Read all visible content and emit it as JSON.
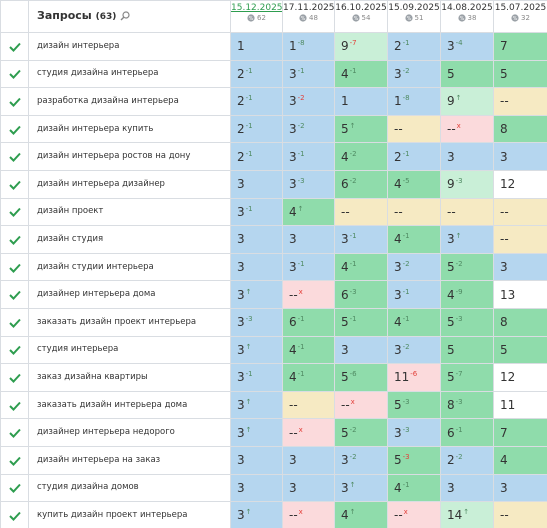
{
  "header": {
    "title": "Запросы",
    "count": "(63)",
    "dates": [
      {
        "date": "15.12.2025",
        "count": "62",
        "current": true
      },
      {
        "date": "17.11.2025",
        "count": "48"
      },
      {
        "date": "16.10.2025",
        "count": "54"
      },
      {
        "date": "15.09.2025",
        "count": "51"
      },
      {
        "date": "14.08.2025",
        "count": "38"
      },
      {
        "date": "15.07.2025",
        "count": "32"
      }
    ]
  },
  "palette": {
    "b": "#b5d6ef",
    "g": "#8fdcab",
    "l": "#c9efd7",
    "y": "#f6eac3",
    "p": "#fbdadc",
    "w": "#ffffff",
    "n": "#4f8a62",
    "r": "#e2403a"
  },
  "rows": [
    {
      "query": "дизайн интерьера",
      "cells": [
        {
          "v": "1",
          "c": "b"
        },
        {
          "v": "1",
          "d": "-8",
          "c": "b"
        },
        {
          "v": "9",
          "d": "-7",
          "c": "l",
          "dc": "r"
        },
        {
          "v": "2",
          "d": "-1",
          "c": "b"
        },
        {
          "v": "3",
          "d": "-4",
          "c": "b"
        },
        {
          "v": "7",
          "c": "g"
        }
      ]
    },
    {
      "query": "студия дизайна интерьера",
      "cells": [
        {
          "v": "2",
          "d": "-1",
          "c": "b"
        },
        {
          "v": "3",
          "d": "-1",
          "c": "b"
        },
        {
          "v": "4",
          "d": "-1",
          "c": "g"
        },
        {
          "v": "3",
          "d": "-2",
          "c": "b"
        },
        {
          "v": "5",
          "c": "g"
        },
        {
          "v": "5",
          "c": "g"
        }
      ]
    },
    {
      "query": "разработка дизайна интерьера",
      "cells": [
        {
          "v": "2",
          "d": "-1",
          "c": "b"
        },
        {
          "v": "3",
          "d": "-2",
          "c": "b",
          "dc": "r"
        },
        {
          "v": "1",
          "c": "b"
        },
        {
          "v": "1",
          "d": "-8",
          "c": "b"
        },
        {
          "v": "9",
          "d": "↑",
          "c": "l"
        },
        {
          "v": "--",
          "c": "y"
        }
      ]
    },
    {
      "query": "дизайн интерьера купить",
      "cells": [
        {
          "v": "2",
          "d": "-1",
          "c": "b"
        },
        {
          "v": "3",
          "d": "-2",
          "c": "b"
        },
        {
          "v": "5",
          "d": "↑",
          "c": "g"
        },
        {
          "v": "--",
          "c": "y"
        },
        {
          "v": "--",
          "d": "x",
          "c": "p",
          "dc": "r"
        },
        {
          "v": "8",
          "c": "g"
        }
      ]
    },
    {
      "query": "дизайн интерьера ростов на дону",
      "cells": [
        {
          "v": "2",
          "d": "-1",
          "c": "b"
        },
        {
          "v": "3",
          "d": "-1",
          "c": "b"
        },
        {
          "v": "4",
          "d": "-2",
          "c": "g"
        },
        {
          "v": "2",
          "d": "-1",
          "c": "b"
        },
        {
          "v": "3",
          "c": "b"
        },
        {
          "v": "3",
          "c": "b"
        }
      ]
    },
    {
      "query": "дизайн интерьера дизайнер",
      "cells": [
        {
          "v": "3",
          "c": "b"
        },
        {
          "v": "3",
          "d": "-3",
          "c": "b"
        },
        {
          "v": "6",
          "d": "-2",
          "c": "g"
        },
        {
          "v": "4",
          "d": "-5",
          "c": "g"
        },
        {
          "v": "9",
          "d": "-3",
          "c": "l"
        },
        {
          "v": "12",
          "c": "w"
        }
      ]
    },
    {
      "query": "дизайн проект",
      "cells": [
        {
          "v": "3",
          "d": "-1",
          "c": "b"
        },
        {
          "v": "4",
          "d": "↑",
          "c": "g"
        },
        {
          "v": "--",
          "c": "y"
        },
        {
          "v": "--",
          "c": "y"
        },
        {
          "v": "--",
          "c": "y"
        },
        {
          "v": "--",
          "c": "y"
        }
      ]
    },
    {
      "query": "дизайн студия",
      "cells": [
        {
          "v": "3",
          "c": "b"
        },
        {
          "v": "3",
          "c": "b"
        },
        {
          "v": "3",
          "d": "-1",
          "c": "b"
        },
        {
          "v": "4",
          "d": "-1",
          "c": "g"
        },
        {
          "v": "3",
          "d": "↑",
          "c": "b"
        },
        {
          "v": "--",
          "c": "y"
        }
      ]
    },
    {
      "query": "дизайн студии интерьера",
      "cells": [
        {
          "v": "3",
          "c": "b"
        },
        {
          "v": "3",
          "d": "-1",
          "c": "b"
        },
        {
          "v": "4",
          "d": "-1",
          "c": "g"
        },
        {
          "v": "3",
          "d": "-2",
          "c": "b"
        },
        {
          "v": "5",
          "d": "-2",
          "c": "g"
        },
        {
          "v": "3",
          "c": "b"
        }
      ]
    },
    {
      "query": "дизайнер интерьера дома",
      "cells": [
        {
          "v": "3",
          "d": "↑",
          "c": "b"
        },
        {
          "v": "--",
          "d": "x",
          "c": "p",
          "dc": "r"
        },
        {
          "v": "6",
          "d": "-3",
          "c": "g"
        },
        {
          "v": "3",
          "d": "-1",
          "c": "b"
        },
        {
          "v": "4",
          "d": "-9",
          "c": "g"
        },
        {
          "v": "13",
          "c": "w"
        }
      ]
    },
    {
      "query": "заказать дизайн проект интерьера",
      "cells": [
        {
          "v": "3",
          "d": "-3",
          "c": "b"
        },
        {
          "v": "6",
          "d": "-1",
          "c": "g"
        },
        {
          "v": "5",
          "d": "-1",
          "c": "g"
        },
        {
          "v": "4",
          "d": "-1",
          "c": "g"
        },
        {
          "v": "5",
          "d": "-3",
          "c": "g"
        },
        {
          "v": "8",
          "c": "g"
        }
      ]
    },
    {
      "query": "студия интерьера",
      "cells": [
        {
          "v": "3",
          "d": "↑",
          "c": "b"
        },
        {
          "v": "4",
          "d": "-1",
          "c": "g"
        },
        {
          "v": "3",
          "c": "b"
        },
        {
          "v": "3",
          "d": "-2",
          "c": "b"
        },
        {
          "v": "5",
          "c": "g"
        },
        {
          "v": "5",
          "c": "g"
        }
      ]
    },
    {
      "query": "заказ дизайна квартиры",
      "cells": [
        {
          "v": "3",
          "d": "-1",
          "c": "b"
        },
        {
          "v": "4",
          "d": "-1",
          "c": "g"
        },
        {
          "v": "5",
          "d": "-6",
          "c": "g"
        },
        {
          "v": "11",
          "d": "-6",
          "c": "p",
          "dc": "r"
        },
        {
          "v": "5",
          "d": "-7",
          "c": "g"
        },
        {
          "v": "12",
          "c": "w"
        }
      ]
    },
    {
      "query": "заказать дизайн интерьера дома",
      "cells": [
        {
          "v": "3",
          "d": "↑",
          "c": "b"
        },
        {
          "v": "--",
          "c": "y"
        },
        {
          "v": "--",
          "d": "x",
          "c": "p",
          "dc": "r"
        },
        {
          "v": "5",
          "d": "-3",
          "c": "g"
        },
        {
          "v": "8",
          "d": "-3",
          "c": "g"
        },
        {
          "v": "11",
          "c": "w"
        }
      ]
    },
    {
      "query": "дизайнер интерьера недорого",
      "cells": [
        {
          "v": "3",
          "d": "↑",
          "c": "b"
        },
        {
          "v": "--",
          "d": "x",
          "c": "p",
          "dc": "r"
        },
        {
          "v": "5",
          "d": "-2",
          "c": "g"
        },
        {
          "v": "3",
          "d": "-3",
          "c": "b"
        },
        {
          "v": "6",
          "d": "-1",
          "c": "g"
        },
        {
          "v": "7",
          "c": "g"
        }
      ]
    },
    {
      "query": "дизайн интерьера на заказ",
      "cells": [
        {
          "v": "3",
          "c": "b"
        },
        {
          "v": "3",
          "c": "b"
        },
        {
          "v": "3",
          "d": "-2",
          "c": "b"
        },
        {
          "v": "5",
          "d": "-3",
          "c": "g",
          "dc": "r"
        },
        {
          "v": "2",
          "d": "-2",
          "c": "b"
        },
        {
          "v": "4",
          "c": "g"
        }
      ]
    },
    {
      "query": "студия дизайна домов",
      "cells": [
        {
          "v": "3",
          "c": "b"
        },
        {
          "v": "3",
          "c": "b"
        },
        {
          "v": "3",
          "d": "↑",
          "c": "b"
        },
        {
          "v": "4",
          "d": "-1",
          "c": "g"
        },
        {
          "v": "3",
          "c": "b"
        },
        {
          "v": "3",
          "c": "b"
        }
      ]
    },
    {
      "query": "купить дизайн проект интерьера",
      "cells": [
        {
          "v": "3",
          "d": "↑",
          "c": "b"
        },
        {
          "v": "--",
          "d": "x",
          "c": "p",
          "dc": "r"
        },
        {
          "v": "4",
          "d": "↑",
          "c": "g"
        },
        {
          "v": "--",
          "d": "x",
          "c": "p",
          "dc": "r"
        },
        {
          "v": "14",
          "d": "↑",
          "c": "l"
        },
        {
          "v": "--",
          "c": "y"
        }
      ]
    }
  ]
}
